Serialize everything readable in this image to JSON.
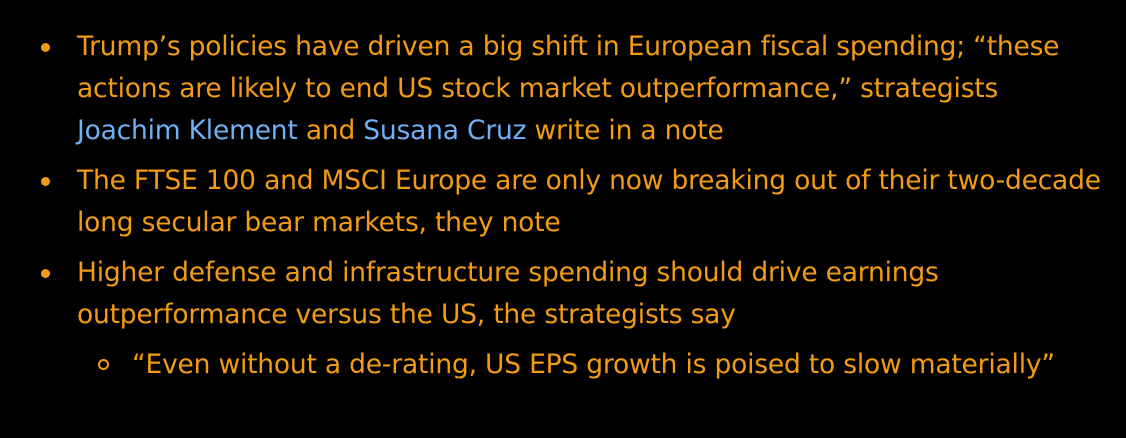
{
  "colors": {
    "background": "#000000",
    "text": "#f39c12",
    "link": "#6fb1f5"
  },
  "bullets": [
    {
      "part1": "Trump’s policies have driven a big shift in European fiscal spending; “these actions are likely to end US stock market outperformance,” strategists ",
      "link1": "Joachim Klement",
      "part2": " and ",
      "link2": "Susana Cruz",
      "part3": " write in a note"
    },
    {
      "text": "The FTSE 100 and MSCI Europe are only now breaking out of their two-decade long secular bear markets, they note"
    },
    {
      "text": "Higher defense and infrastructure spending should drive earnings outperformance versus the US, the strategists say",
      "sub": [
        {
          "text": "“Even without a de-rating, US EPS growth is poised to slow materially”"
        }
      ]
    }
  ]
}
